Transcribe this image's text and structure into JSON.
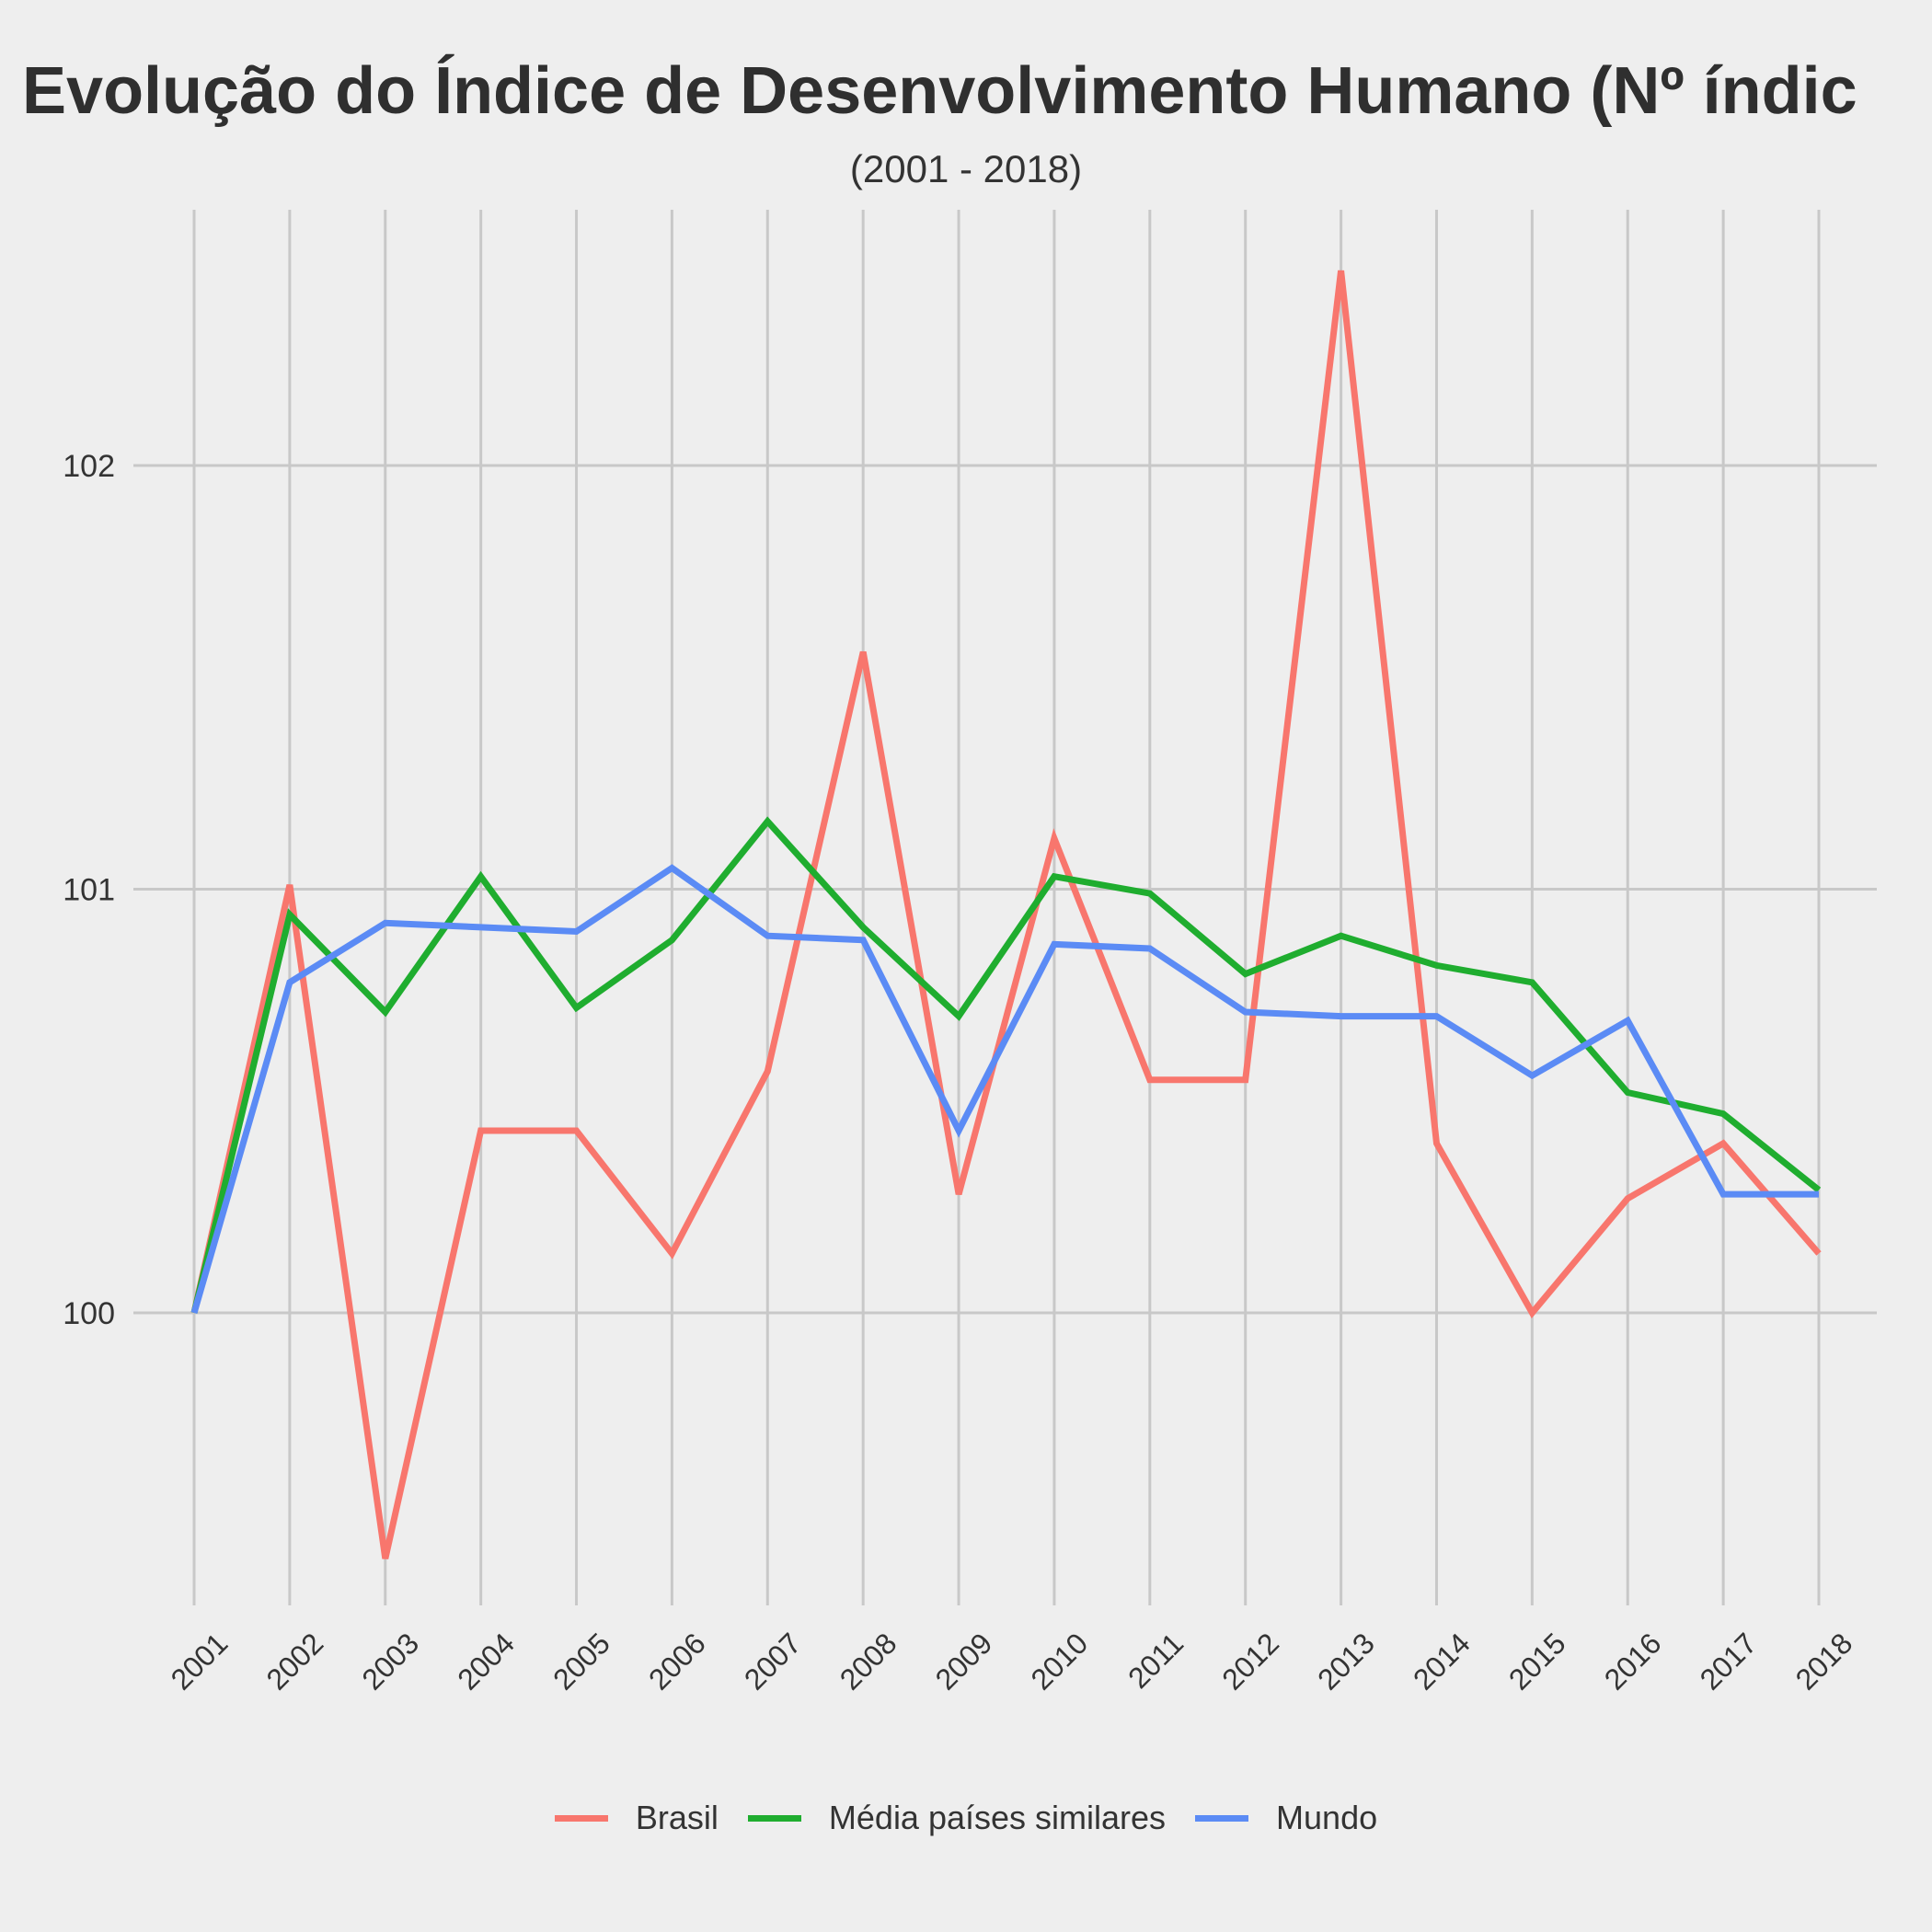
{
  "chart_data": {
    "type": "line",
    "title": "Evolução do Índice de Desenvolvimento Humano (Nº índic",
    "subtitle": "(2001 - 2018)",
    "xlabel": "",
    "ylabel": "",
    "x": [
      "2001",
      "2002",
      "2003",
      "2004",
      "2005",
      "2006",
      "2007",
      "2008",
      "2009",
      "2010",
      "2011",
      "2012",
      "2013",
      "2014",
      "2015",
      "2016",
      "2017",
      "2018"
    ],
    "y_ticks": [
      100,
      101,
      102
    ],
    "ylim": [
      99.35,
      102.6
    ],
    "grid": true,
    "legend": "bottom",
    "series": [
      {
        "name": "Brasil",
        "color": "#f8766d",
        "values": [
          100.0,
          101.01,
          99.42,
          100.43,
          100.43,
          100.14,
          100.57,
          101.56,
          100.28,
          101.12,
          100.55,
          100.55,
          102.46,
          100.4,
          100.0,
          100.27,
          100.4,
          100.14
        ]
      },
      {
        "name": "Média países similares",
        "color": "#1fad2f",
        "values": [
          100.0,
          100.94,
          100.71,
          101.03,
          100.72,
          100.88,
          101.16,
          100.91,
          100.7,
          101.03,
          100.99,
          100.8,
          100.89,
          100.82,
          100.78,
          100.52,
          100.47,
          100.29
        ]
      },
      {
        "name": "Mundo",
        "color": "#5b8bf5",
        "values": [
          100.0,
          100.78,
          100.92,
          100.91,
          100.9,
          101.05,
          100.89,
          100.88,
          100.43,
          100.87,
          100.86,
          100.71,
          100.7,
          100.7,
          100.56,
          100.69,
          100.28,
          100.28
        ]
      }
    ]
  }
}
